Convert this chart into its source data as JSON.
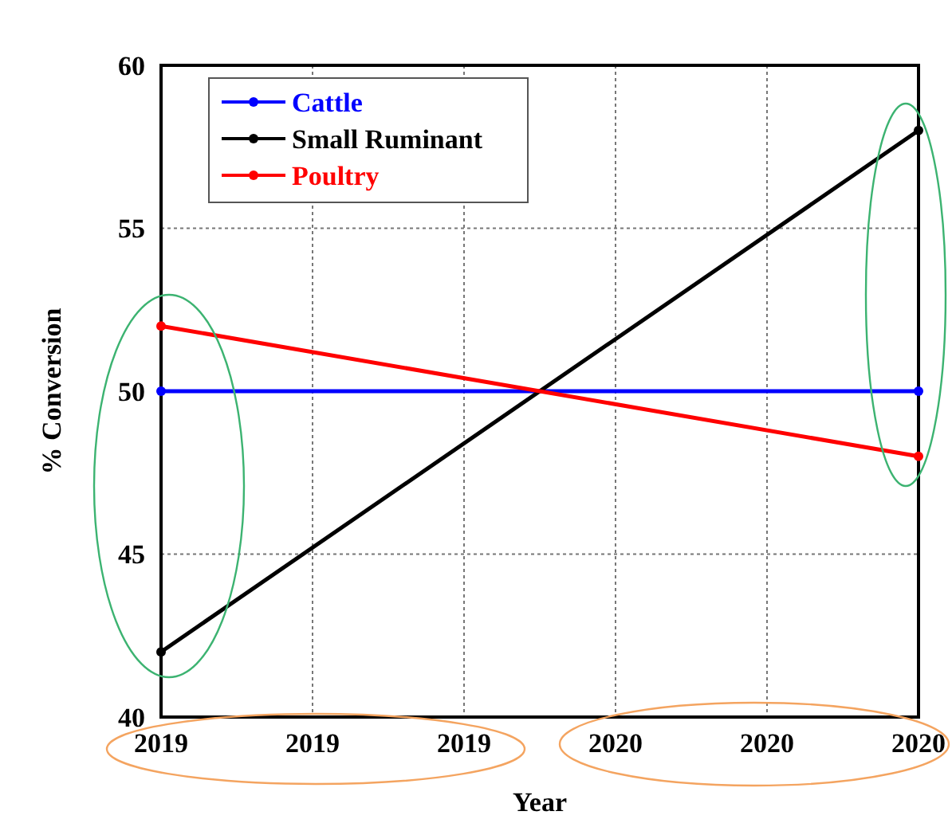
{
  "chart_data": {
    "type": "line",
    "xlabel": "Year",
    "ylabel": "% Conversion",
    "x": [
      2019,
      2020
    ],
    "series": [
      {
        "name": "Cattle",
        "color": "#0000ff",
        "values": [
          50,
          50
        ]
      },
      {
        "name": "Small Ruminant",
        "color": "#000000",
        "values": [
          42,
          58
        ]
      },
      {
        "name": "Poultry",
        "color": "#ff0000",
        "values": [
          52,
          48
        ]
      }
    ],
    "xlim": [
      2019,
      2020
    ],
    "xticks": [
      2019,
      {
        "value": 2019.2,
        "label": "2019"
      },
      {
        "value": 2019.4,
        "label": "2019"
      },
      {
        "value": 2019.6,
        "label": "2020"
      },
      {
        "value": 2019.8,
        "label": "2020"
      },
      2020
    ],
    "ylim": [
      40,
      60
    ],
    "yticks": [
      40,
      45,
      50,
      55,
      60
    ],
    "grid": true,
    "legend": "top left",
    "marker": "circle",
    "line_style": "solid"
  }
}
